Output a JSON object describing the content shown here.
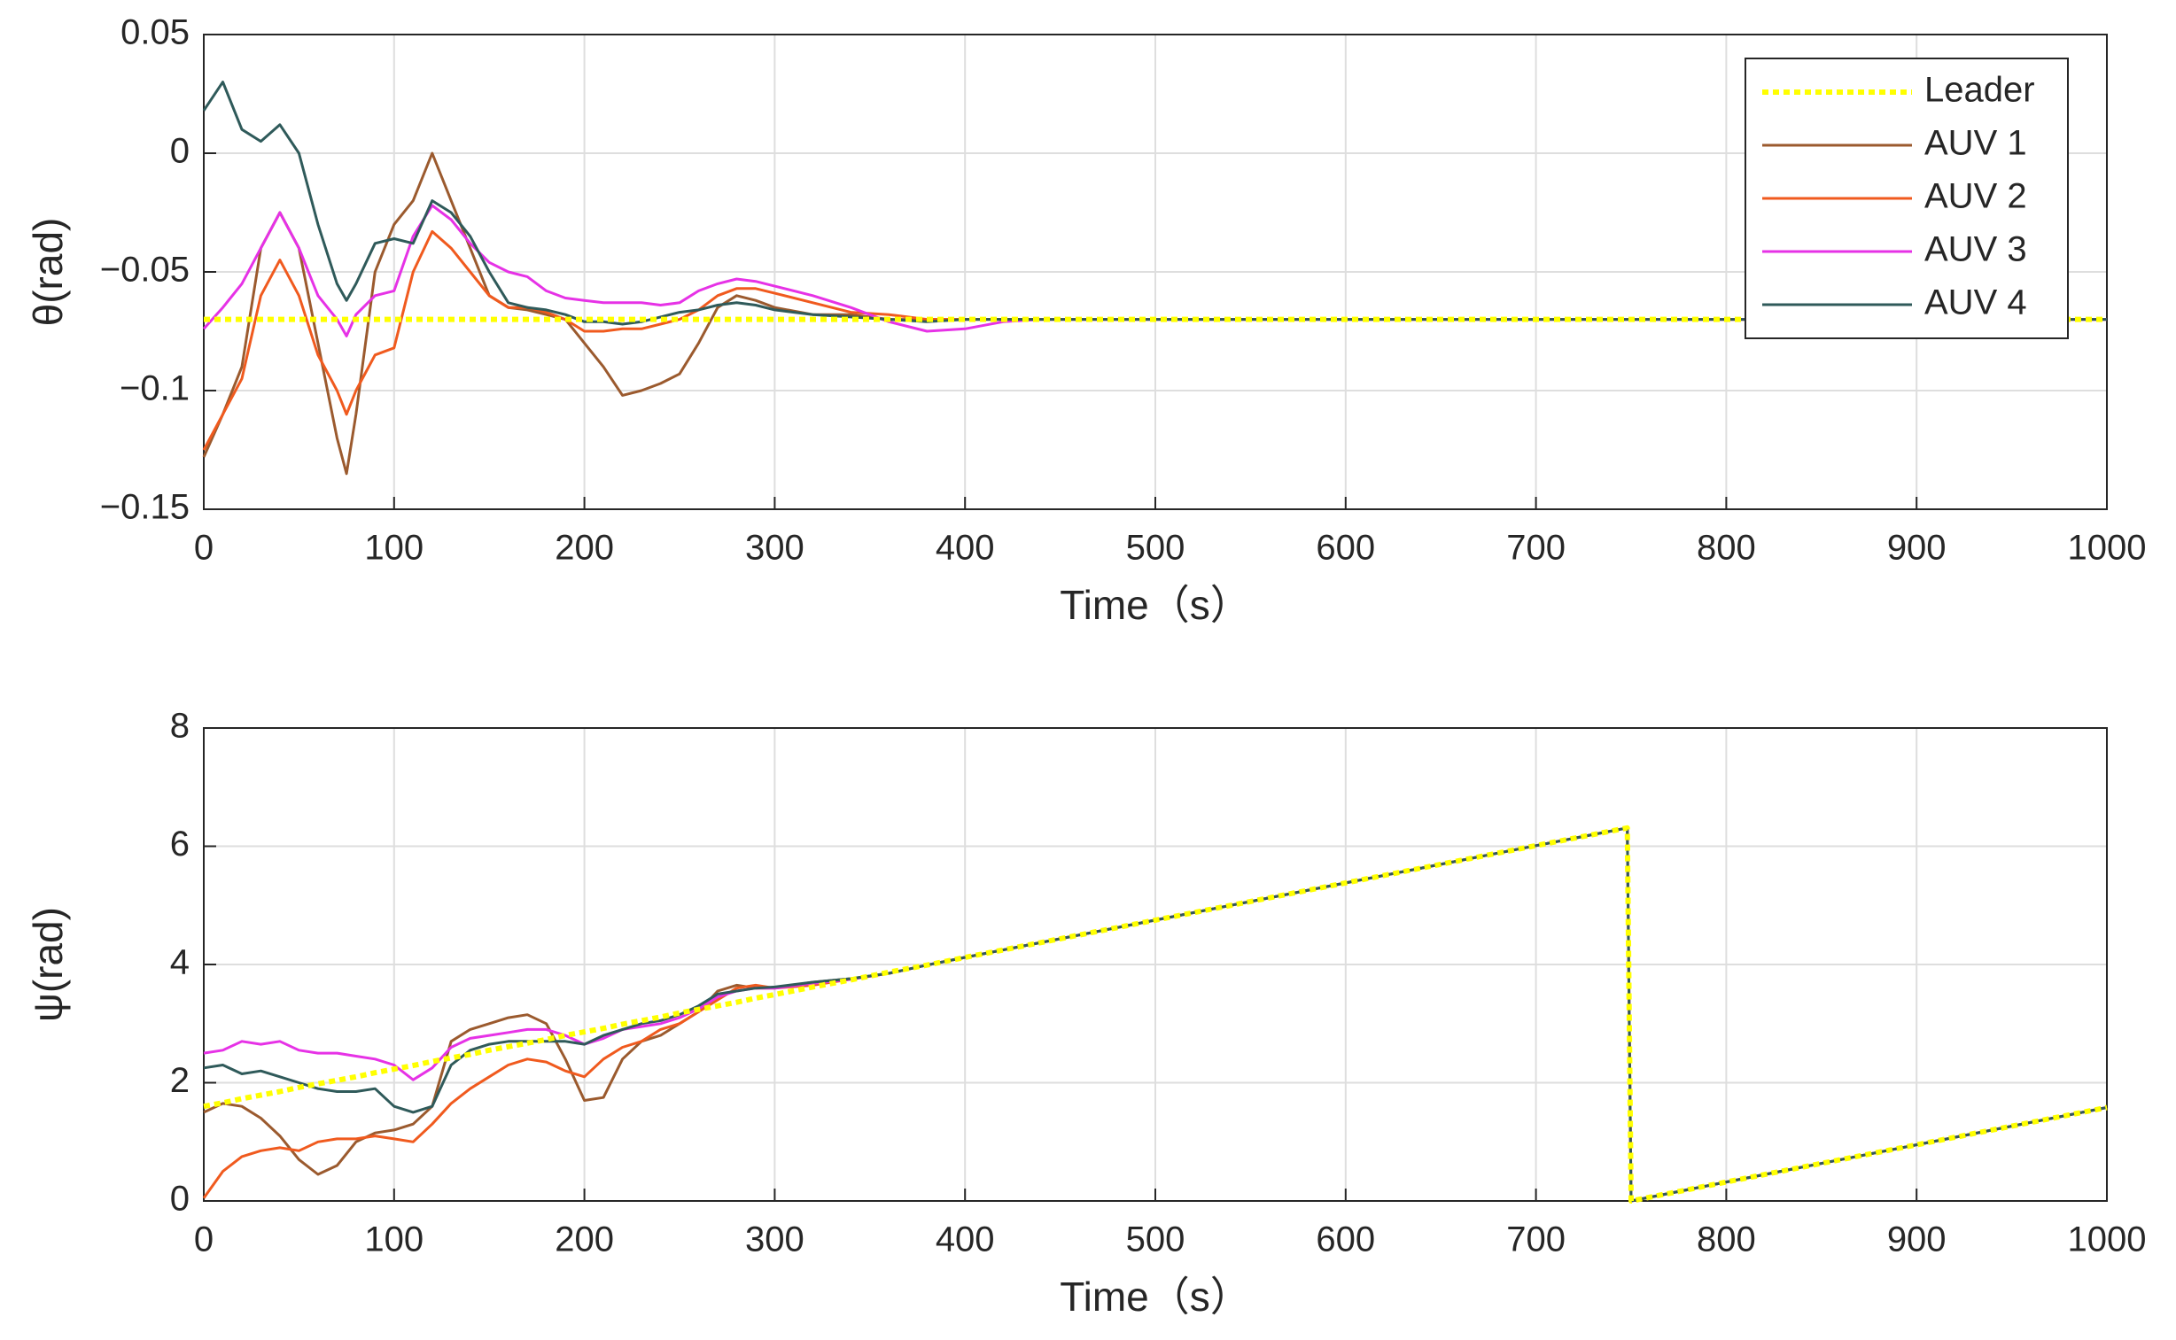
{
  "chart_data": [
    {
      "type": "line",
      "ylabel": "θ(rad)",
      "xlabel": "Time（s）",
      "grid": true,
      "legend": "upper right",
      "xlim": [
        0,
        1000
      ],
      "xticks": [
        0,
        100,
        200,
        300,
        400,
        500,
        600,
        700,
        800,
        900,
        1000
      ],
      "ylim": [
        -0.15,
        0.05
      ],
      "yticks": [
        {
          "value": -0.15,
          "label": "−0.15"
        },
        {
          "value": -0.1,
          "label": "−0.1"
        },
        {
          "value": -0.05,
          "label": "−0.05"
        },
        0,
        0.05
      ],
      "x": [
        0,
        10,
        20,
        30,
        40,
        50,
        60,
        70,
        75,
        80,
        90,
        100,
        110,
        120,
        130,
        140,
        150,
        160,
        170,
        180,
        190,
        200,
        210,
        220,
        230,
        240,
        250,
        260,
        270,
        280,
        290,
        300,
        320,
        340,
        360,
        380,
        400,
        420,
        440,
        500,
        600,
        700,
        800,
        900,
        1000
      ],
      "series": [
        {
          "name": "Leader",
          "color": "#ffff00",
          "style": "dotted",
          "values": [
            -0.07,
            -0.07,
            -0.07,
            -0.07,
            -0.07,
            -0.07,
            -0.07,
            -0.07,
            -0.07,
            -0.07,
            -0.07,
            -0.07,
            -0.07,
            -0.07,
            -0.07,
            -0.07,
            -0.07,
            -0.07,
            -0.07,
            -0.07,
            -0.07,
            -0.07,
            -0.07,
            -0.07,
            -0.07,
            -0.07,
            -0.07,
            -0.07,
            -0.07,
            -0.07,
            -0.07,
            -0.07,
            -0.07,
            -0.07,
            -0.07,
            -0.07,
            -0.07,
            -0.07,
            -0.07,
            -0.07,
            -0.07,
            -0.07,
            -0.07,
            -0.07,
            -0.07
          ]
        },
        {
          "name": "AUV 1",
          "color": "#9b5a2e",
          "values": [
            -0.128,
            -0.11,
            -0.09,
            -0.04,
            -0.025,
            -0.04,
            -0.08,
            -0.12,
            -0.135,
            -0.11,
            -0.05,
            -0.03,
            -0.02,
            0,
            -0.02,
            -0.04,
            -0.06,
            -0.065,
            -0.066,
            -0.068,
            -0.07,
            -0.08,
            -0.09,
            -0.102,
            -0.1,
            -0.097,
            -0.093,
            -0.08,
            -0.065,
            -0.06,
            -0.062,
            -0.065,
            -0.068,
            -0.068,
            -0.07,
            -0.07,
            -0.07,
            -0.07,
            -0.07,
            -0.07,
            -0.07,
            -0.07,
            -0.07,
            -0.07,
            -0.07
          ]
        },
        {
          "name": "AUV 2",
          "color": "#f05a1e",
          "values": [
            -0.125,
            -0.11,
            -0.095,
            -0.06,
            -0.045,
            -0.06,
            -0.085,
            -0.1,
            -0.11,
            -0.1,
            -0.085,
            -0.082,
            -0.05,
            -0.033,
            -0.04,
            -0.05,
            -0.06,
            -0.065,
            -0.065,
            -0.067,
            -0.07,
            -0.075,
            -0.075,
            -0.074,
            -0.074,
            -0.072,
            -0.07,
            -0.066,
            -0.06,
            -0.057,
            -0.057,
            -0.059,
            -0.063,
            -0.067,
            -0.068,
            -0.07,
            -0.07,
            -0.07,
            -0.07,
            -0.07,
            -0.07,
            -0.07,
            -0.07,
            -0.07,
            -0.07
          ]
        },
        {
          "name": "AUV 3",
          "color": "#e632e6",
          "values": [
            -0.074,
            -0.065,
            -0.055,
            -0.04,
            -0.025,
            -0.04,
            -0.06,
            -0.07,
            -0.077,
            -0.068,
            -0.06,
            -0.058,
            -0.035,
            -0.022,
            -0.028,
            -0.038,
            -0.046,
            -0.05,
            -0.052,
            -0.058,
            -0.061,
            -0.062,
            -0.063,
            -0.063,
            -0.063,
            -0.064,
            -0.063,
            -0.058,
            -0.055,
            -0.053,
            -0.054,
            -0.056,
            -0.06,
            -0.065,
            -0.071,
            -0.075,
            -0.074,
            -0.071,
            -0.07,
            -0.07,
            -0.07,
            -0.07,
            -0.07,
            -0.07,
            -0.07
          ]
        },
        {
          "name": "AUV 4",
          "color": "#2f5a5a",
          "values": [
            0.018,
            0.03,
            0.01,
            0.005,
            0.012,
            0,
            -0.03,
            -0.055,
            -0.062,
            -0.055,
            -0.038,
            -0.036,
            -0.038,
            -0.02,
            -0.025,
            -0.035,
            -0.05,
            -0.063,
            -0.065,
            -0.066,
            -0.068,
            -0.071,
            -0.071,
            -0.072,
            -0.071,
            -0.069,
            -0.067,
            -0.066,
            -0.064,
            -0.063,
            -0.064,
            -0.066,
            -0.068,
            -0.069,
            -0.07,
            -0.071,
            -0.07,
            -0.07,
            -0.07,
            -0.07,
            -0.07,
            -0.07,
            -0.07,
            -0.07,
            -0.07
          ]
        }
      ]
    },
    {
      "type": "line",
      "ylabel": "ψ(rad)",
      "xlabel": "Time（s）",
      "grid": true,
      "xlim": [
        0,
        1000
      ],
      "xticks": [
        0,
        100,
        200,
        300,
        400,
        500,
        600,
        700,
        800,
        900,
        1000
      ],
      "ylim": [
        0,
        8
      ],
      "yticks": [
        0,
        2,
        4,
        6,
        8
      ],
      "x": [
        0,
        10,
        20,
        30,
        40,
        50,
        60,
        70,
        80,
        90,
        100,
        110,
        120,
        130,
        140,
        150,
        160,
        170,
        180,
        190,
        200,
        210,
        220,
        230,
        240,
        250,
        260,
        270,
        280,
        290,
        300,
        320,
        340,
        360,
        380,
        400,
        500,
        600,
        700,
        748,
        750,
        800,
        900,
        1000
      ],
      "series": [
        {
          "color": "#ffff00",
          "style": "dotted",
          "values": [
            1.6,
            1.66,
            1.73,
            1.79,
            1.85,
            1.92,
            1.98,
            2.04,
            2.1,
            2.17,
            2.23,
            2.29,
            2.36,
            2.42,
            2.48,
            2.55,
            2.61,
            2.67,
            2.73,
            2.8,
            2.86,
            2.92,
            2.99,
            3.05,
            3.11,
            3.18,
            3.24,
            3.3,
            3.36,
            3.43,
            3.49,
            3.62,
            3.74,
            3.87,
            3.99,
            4.12,
            4.75,
            5.38,
            6.01,
            6.31,
            0,
            0.32,
            0.95,
            1.58
          ]
        },
        {
          "color": "#9b5a2e",
          "values": [
            1.5,
            1.65,
            1.6,
            1.4,
            1.1,
            0.7,
            0.45,
            0.6,
            1,
            1.15,
            1.2,
            1.3,
            1.6,
            2.7,
            2.9,
            3,
            3.1,
            3.15,
            3,
            2.4,
            1.7,
            1.75,
            2.4,
            2.7,
            2.8,
            3,
            3.2,
            3.55,
            3.65,
            3.6,
            3.6,
            3.7,
            3.76,
            3.85,
            3.99,
            4.12,
            4.75,
            5.38,
            6.01,
            6.31,
            0,
            0.32,
            0.95,
            1.58
          ]
        },
        {
          "color": "#f05a1e",
          "values": [
            0.05,
            0.5,
            0.75,
            0.85,
            0.9,
            0.85,
            1,
            1.05,
            1.05,
            1.1,
            1.05,
            1,
            1.3,
            1.65,
            1.9,
            2.1,
            2.3,
            2.4,
            2.35,
            2.2,
            2.1,
            2.4,
            2.6,
            2.7,
            2.9,
            3,
            3.2,
            3.4,
            3.6,
            3.65,
            3.6,
            3.65,
            3.75,
            3.85,
            3.99,
            4.12,
            4.75,
            5.38,
            6.01,
            6.31,
            0,
            0.32,
            0.95,
            1.58
          ]
        },
        {
          "color": "#e632e6",
          "values": [
            2.5,
            2.55,
            2.7,
            2.65,
            2.7,
            2.55,
            2.5,
            2.5,
            2.45,
            2.4,
            2.3,
            2.05,
            2.25,
            2.6,
            2.75,
            2.8,
            2.85,
            2.9,
            2.9,
            2.8,
            2.65,
            2.75,
            2.9,
            2.95,
            3,
            3.1,
            3.25,
            3.45,
            3.55,
            3.6,
            3.6,
            3.68,
            3.75,
            3.85,
            3.99,
            4.12,
            4.75,
            5.38,
            6.01,
            6.31,
            0,
            0.32,
            0.95,
            1.58
          ]
        },
        {
          "color": "#2f5a5a",
          "values": [
            2.25,
            2.3,
            2.15,
            2.2,
            2.1,
            2,
            1.9,
            1.85,
            1.85,
            1.9,
            1.6,
            1.5,
            1.6,
            2.3,
            2.55,
            2.65,
            2.7,
            2.7,
            2.7,
            2.7,
            2.65,
            2.8,
            2.9,
            3,
            3.05,
            3.15,
            3.3,
            3.5,
            3.55,
            3.6,
            3.62,
            3.7,
            3.76,
            3.85,
            3.99,
            4.12,
            4.75,
            5.38,
            6.01,
            6.31,
            0,
            0.32,
            0.95,
            1.58
          ]
        }
      ]
    }
  ]
}
